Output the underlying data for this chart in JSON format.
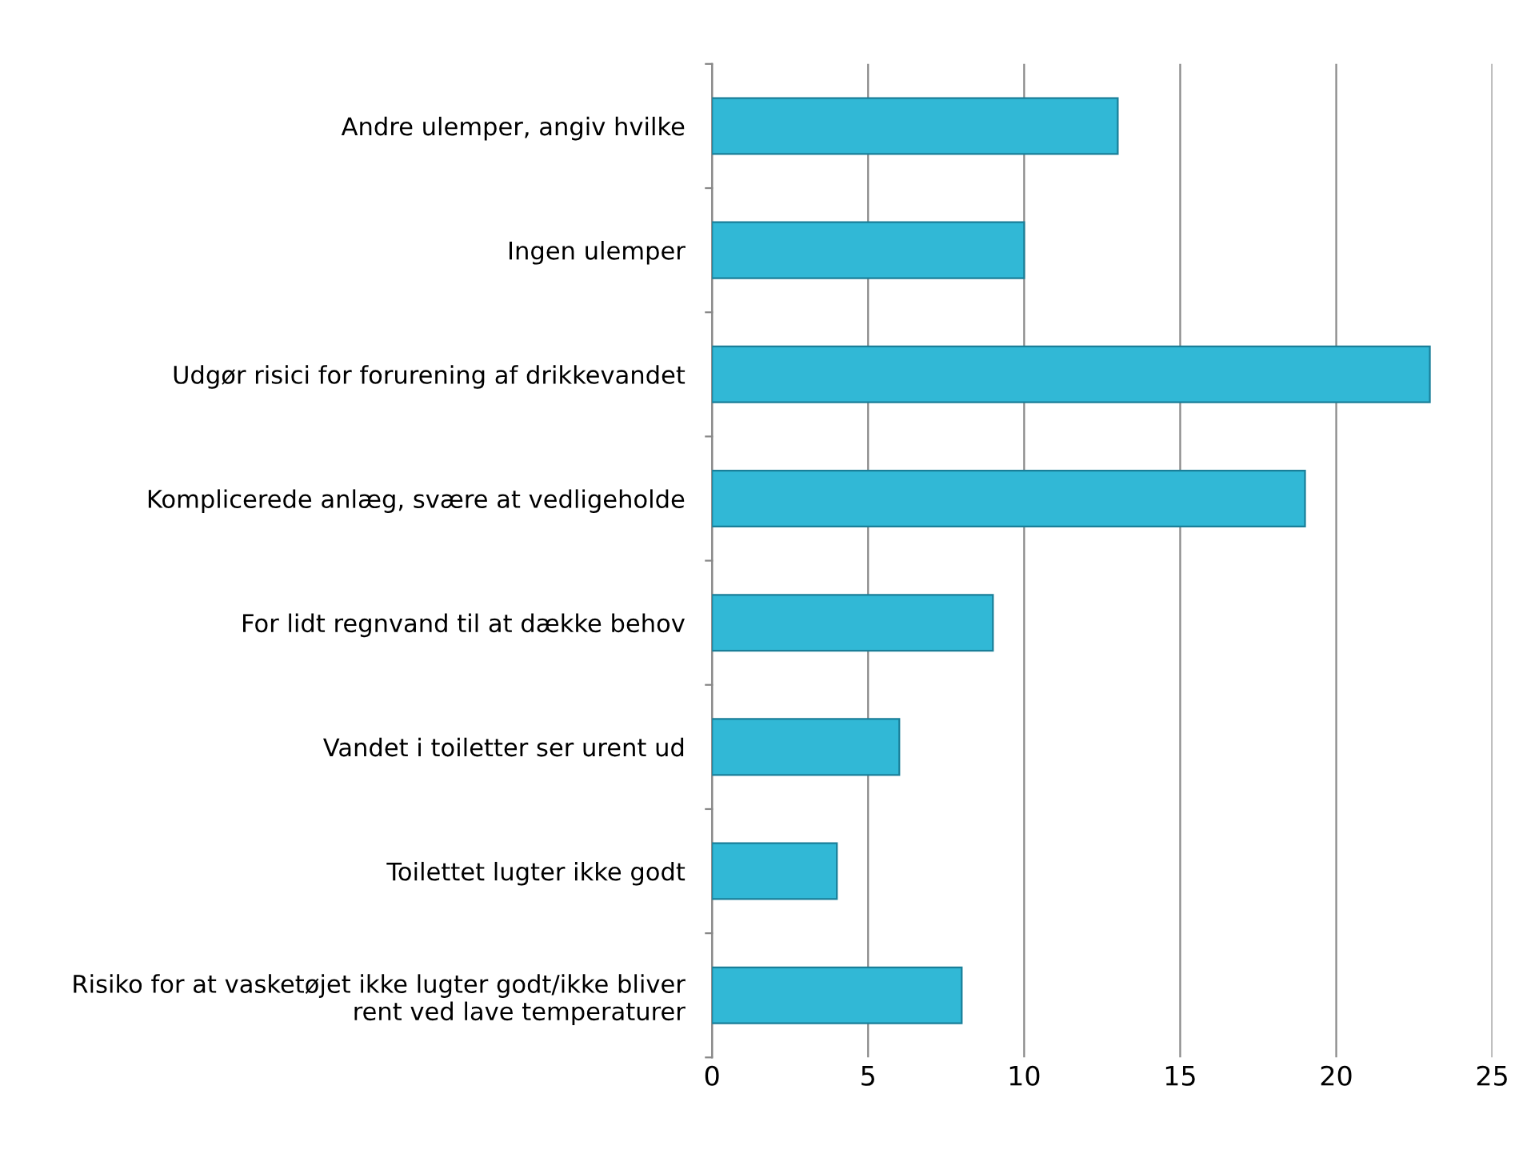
{
  "chart_data": {
    "type": "bar",
    "orientation": "horizontal",
    "categories": [
      "Andre ulemper, angiv hvilke",
      "Ingen ulemper",
      "Udgør risici for forurening af drikkevandet",
      "Komplicerede anlæg, svære at vedligeholde",
      "For lidt regnvand til at dække behov",
      "Vandet i toiletter ser urent ud",
      "Toilettet lugter ikke godt",
      "Risiko for at vasketøjet ikke lugter godt/ikke bliver\nrent ved lave temperaturer"
    ],
    "values": [
      13,
      10,
      23,
      19,
      9,
      6,
      4,
      8
    ],
    "color": "#31b8d6",
    "xlim": [
      0,
      25
    ],
    "xticks": [
      0,
      5,
      10,
      15,
      20,
      25
    ],
    "grid": "x"
  }
}
